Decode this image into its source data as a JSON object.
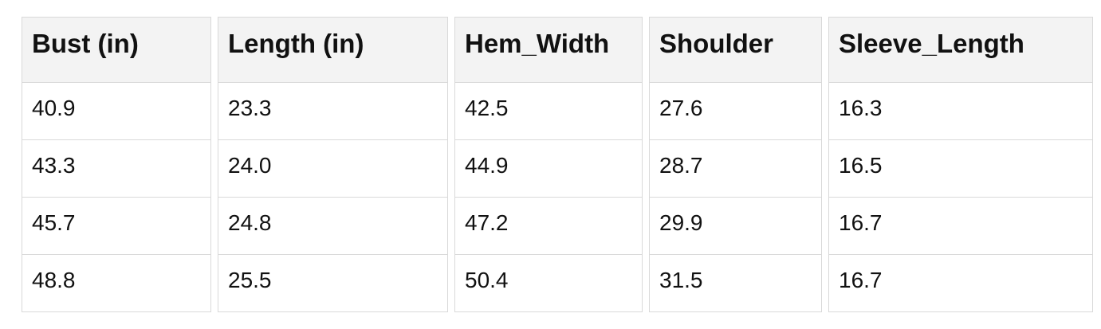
{
  "chart_data": {
    "type": "table",
    "title": "",
    "columns": [
      "Bust (in)",
      "Length (in)",
      "Hem_Width",
      "Shoulder",
      "Sleeve_Length"
    ],
    "rows": [
      [
        "40.9",
        "23.3",
        "42.5",
        "27.6",
        "16.3"
      ],
      [
        "43.3",
        "24.0",
        "44.9",
        "28.7",
        "16.5"
      ],
      [
        "45.7",
        "24.8",
        "47.2",
        "29.9",
        "16.7"
      ],
      [
        "48.8",
        "25.5",
        "50.4",
        "31.5",
        "16.7"
      ]
    ]
  },
  "colors": {
    "header_bg": "#f3f3f3",
    "border": "#d9d9d9",
    "text": "#111111",
    "page_bg": "#ffffff"
  }
}
